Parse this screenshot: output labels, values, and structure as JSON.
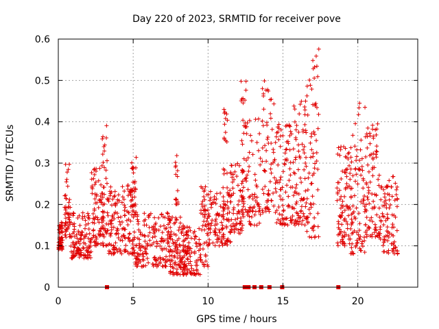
{
  "chart_data": {
    "type": "scatter",
    "title": "Day 220 of 2023, SRMTID for receiver pove",
    "xlabel": "GPS time / hours",
    "ylabel": "SRMTID / TECUs",
    "xlim": [
      0,
      24
    ],
    "ylim": [
      0,
      0.6
    ],
    "xticks": [
      0,
      5,
      10,
      15,
      20
    ],
    "yticks": [
      0,
      0.1,
      0.2,
      0.3,
      0.4,
      0.5,
      0.6
    ],
    "grid": true,
    "marker": "+",
    "color": "#e00000",
    "baseline_gap_markers_x": [
      3.25,
      12.45,
      12.7,
      13.1,
      13.55,
      14.1,
      14.95,
      18.7
    ],
    "series": [
      {
        "name": "SRMTID",
        "clusters": [
          {
            "x": [
              0.0,
              0.3
            ],
            "y": [
              0.09,
              0.16
            ],
            "n": 60
          },
          {
            "x": [
              0.4,
              0.8
            ],
            "y": [
              0.12,
              0.3
            ],
            "n": 50
          },
          {
            "x": [
              0.8,
              2.2
            ],
            "y": [
              0.07,
              0.18
            ],
            "n": 120
          },
          {
            "x": [
              2.2,
              2.9
            ],
            "y": [
              0.1,
              0.29
            ],
            "n": 70
          },
          {
            "x": [
              2.9,
              3.3
            ],
            "y": [
              0.1,
              0.4
            ],
            "n": 50
          },
          {
            "x": [
              3.3,
              5.0
            ],
            "y": [
              0.08,
              0.25
            ],
            "n": 140
          },
          {
            "x": [
              4.9,
              5.2
            ],
            "y": [
              0.18,
              0.32
            ],
            "n": 30
          },
          {
            "x": [
              5.0,
              7.5
            ],
            "y": [
              0.05,
              0.18
            ],
            "n": 180
          },
          {
            "x": [
              7.4,
              8.2
            ],
            "y": [
              0.03,
              0.17
            ],
            "n": 80
          },
          {
            "x": [
              7.8,
              8.0
            ],
            "y": [
              0.2,
              0.32
            ],
            "n": 15
          },
          {
            "x": [
              8.2,
              9.5
            ],
            "y": [
              0.03,
              0.15
            ],
            "n": 120
          },
          {
            "x": [
              9.5,
              10.0
            ],
            "y": [
              0.05,
              0.25
            ],
            "n": 50
          },
          {
            "x": [
              10.0,
              11.5
            ],
            "y": [
              0.1,
              0.24
            ],
            "n": 110
          },
          {
            "x": [
              11.0,
              11.3
            ],
            "y": [
              0.18,
              0.44
            ],
            "n": 25
          },
          {
            "x": [
              11.5,
              12.4
            ],
            "y": [
              0.13,
              0.3
            ],
            "n": 70
          },
          {
            "x": [
              12.2,
              12.6
            ],
            "y": [
              0.15,
              0.5
            ],
            "n": 40
          },
          {
            "x": [
              12.6,
              13.5
            ],
            "y": [
              0.15,
              0.42
            ],
            "n": 60
          },
          {
            "x": [
              13.6,
              14.4
            ],
            "y": [
              0.18,
              0.51
            ],
            "n": 60
          },
          {
            "x": [
              14.4,
              15.6
            ],
            "y": [
              0.15,
              0.4
            ],
            "n": 90
          },
          {
            "x": [
              15.6,
              16.6
            ],
            "y": [
              0.15,
              0.46
            ],
            "n": 90
          },
          {
            "x": [
              16.6,
              17.4
            ],
            "y": [
              0.12,
              0.59
            ],
            "n": 70
          },
          {
            "x": [
              18.6,
              19.5
            ],
            "y": [
              0.1,
              0.34
            ],
            "n": 90
          },
          {
            "x": [
              19.5,
              20.5
            ],
            "y": [
              0.08,
              0.46
            ],
            "n": 90
          },
          {
            "x": [
              20.5,
              21.5
            ],
            "y": [
              0.12,
              0.4
            ],
            "n": 90
          },
          {
            "x": [
              21.5,
              22.7
            ],
            "y": [
              0.08,
              0.27
            ],
            "n": 90
          }
        ]
      }
    ]
  }
}
